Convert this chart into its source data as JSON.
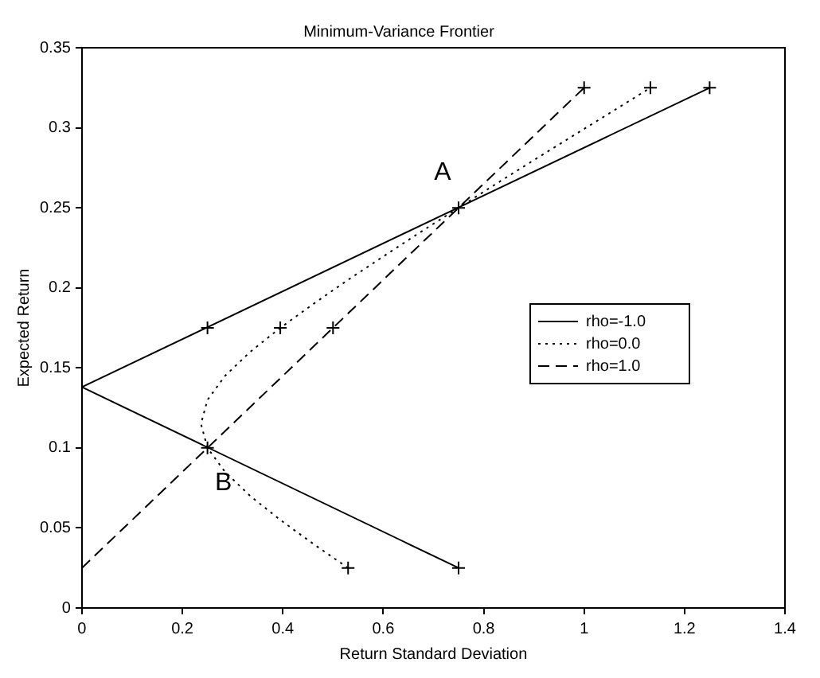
{
  "chart_data": {
    "type": "line",
    "title": "Minimum-Variance Frontier",
    "xlabel": "Return Standard Deviation",
    "ylabel": "Expected Return",
    "xlim": [
      0,
      1.4
    ],
    "xticks": [
      0,
      0.2,
      0.4,
      0.6,
      0.8,
      1,
      1.2,
      1.4
    ],
    "ylim": [
      0,
      0.35
    ],
    "yticks": [
      0,
      0.05,
      0.1,
      0.15,
      0.2,
      0.25,
      0.3,
      0.35
    ],
    "grid": false,
    "legend": "right",
    "marker": "none",
    "series": [
      {
        "name": "rho=-1.0",
        "type": "line",
        "color": "#000000",
        "line_style": "solid",
        "x": [
          0.75,
          0,
          1.25
        ],
        "values": [
          0.025,
          0.138,
          0.325
        ]
      },
      {
        "name": "rho=0.0",
        "type": "line",
        "color": "#000000",
        "line_style": "dotted",
        "x": [
          0.53,
          0.461,
          0.395,
          0.335,
          0.285,
          0.25,
          0.237,
          0.25,
          0.285,
          0.335,
          0.395,
          0.461,
          0.53,
          0.602,
          0.675,
          0.75,
          0.825,
          0.901,
          0.978,
          1.055,
          1.132
        ],
        "values": [
          0.025,
          0.04,
          0.055,
          0.07,
          0.085,
          0.1,
          0.115,
          0.13,
          0.145,
          0.16,
          0.175,
          0.19,
          0.205,
          0.22,
          0.235,
          0.25,
          0.265,
          0.28,
          0.295,
          0.31,
          0.325
        ]
      },
      {
        "name": "rho=1.0",
        "type": "line",
        "color": "#000000",
        "line_style": "dashed",
        "x": [
          0,
          1
        ],
        "values": [
          0.025,
          0.325
        ]
      },
      {
        "type": "scatter",
        "color": "#000000",
        "marker": "cross",
        "x": [
          0.75,
          0.25,
          0.25,
          0.75,
          1.25,
          0.53,
          0.395,
          1.132,
          0.5,
          1
        ],
        "values": [
          0.025,
          0.1,
          0.175,
          0.25,
          0.325,
          0.025,
          0.175,
          0.325,
          0.175,
          0.325
        ]
      }
    ],
    "annotations": [
      {
        "text": "A",
        "x": 0.75,
        "y": 0.25
      },
      {
        "text": "B",
        "x": 0.25,
        "y": 0.1
      }
    ]
  }
}
